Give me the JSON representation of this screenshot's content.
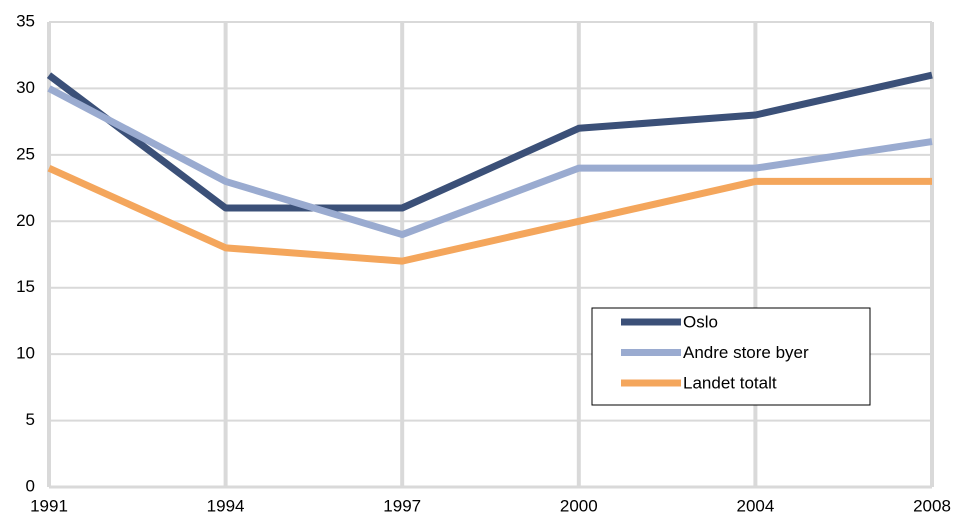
{
  "chart_data": {
    "type": "line",
    "categories": [
      "1991",
      "1994",
      "1997",
      "2000",
      "2004",
      "2008"
    ],
    "series": [
      {
        "name": "Oslo",
        "color": "#3b5078",
        "values": [
          31,
          21,
          21,
          27,
          28,
          31
        ]
      },
      {
        "name": "Andre store byer",
        "color": "#9aabd0",
        "values": [
          30,
          23,
          19,
          24,
          24,
          26
        ]
      },
      {
        "name": "Landet totalt",
        "color": "#f4a65c",
        "values": [
          24,
          18,
          17,
          20,
          23,
          23
        ]
      }
    ],
    "ylim": [
      0,
      35
    ],
    "yticks": [
      0,
      5,
      10,
      15,
      20,
      25,
      30,
      35
    ],
    "grid": true,
    "legend": "lower right"
  }
}
